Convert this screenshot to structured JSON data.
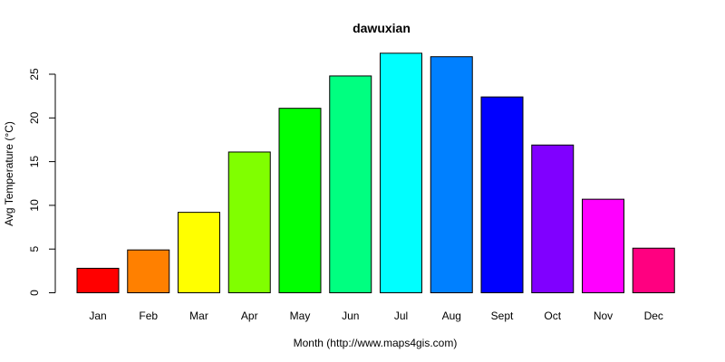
{
  "chart_data": {
    "type": "bar",
    "title": "dawuxian",
    "xlabel": "Month (http://www.maps4gis.com)",
    "ylabel": "Avg Temperature (°C)",
    "categories": [
      "Jan",
      "Feb",
      "Mar",
      "Apr",
      "May",
      "Jun",
      "Jul",
      "Aug",
      "Sept",
      "Oct",
      "Nov",
      "Dec"
    ],
    "values": [
      2.8,
      4.9,
      9.2,
      16.1,
      21.1,
      24.8,
      27.4,
      27.0,
      22.4,
      16.9,
      10.7,
      5.1
    ],
    "colors": [
      "#FF0000",
      "#FF8000",
      "#FFFF00",
      "#80FF00",
      "#00FF00",
      "#00FF80",
      "#00FFFF",
      "#0080FF",
      "#0000FF",
      "#8000FF",
      "#FF00FF",
      "#FF0080"
    ],
    "yticks": [
      0,
      5,
      10,
      15,
      20,
      25
    ],
    "ylim": [
      0,
      27.4
    ],
    "grid": false,
    "legend": "none"
  }
}
